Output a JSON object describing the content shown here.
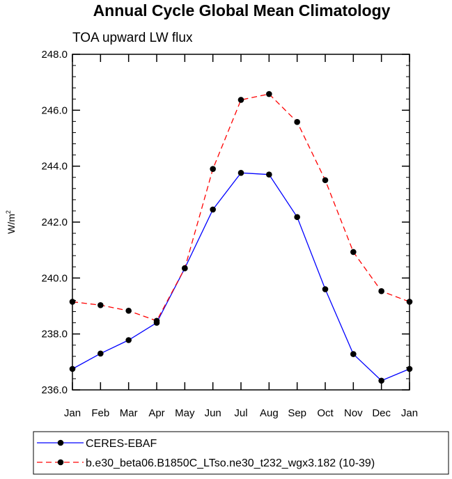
{
  "chart_data": {
    "type": "line",
    "title": "Annual Cycle Global Mean Climatology",
    "subtitle": "TOA upward LW flux",
    "ylabel": "W/m",
    "ylabel_sup": "2",
    "xlabel": "",
    "categories": [
      "Jan",
      "Feb",
      "Mar",
      "Apr",
      "May",
      "Jun",
      "Jul",
      "Aug",
      "Sep",
      "Oct",
      "Nov",
      "Dec",
      "Jan"
    ],
    "ylim": [
      236.0,
      248.0
    ],
    "yticks": [
      236.0,
      238.0,
      240.0,
      242.0,
      244.0,
      246.0,
      248.0
    ],
    "ytick_labels": [
      "236.0",
      "238.0",
      "240.0",
      "242.0",
      "244.0",
      "246.0",
      "248.0"
    ],
    "grid": false,
    "legend_position": "bottom",
    "series": [
      {
        "name": "CERES-EBAF",
        "color": "#0000ff",
        "dash": "solid",
        "values": [
          236.75,
          237.3,
          237.78,
          238.4,
          240.35,
          242.45,
          243.76,
          243.7,
          242.18,
          239.6,
          237.28,
          236.33,
          236.75
        ]
      },
      {
        "name": "b.e30_beta06.B1850C_LTso.ne30_t232_wgx3.182 (10-39)",
        "color": "#ff0000",
        "dash": "dashed",
        "values": [
          239.15,
          239.03,
          238.83,
          238.47,
          240.35,
          243.9,
          246.37,
          246.58,
          245.58,
          243.5,
          240.93,
          239.53,
          239.15
        ]
      }
    ]
  }
}
